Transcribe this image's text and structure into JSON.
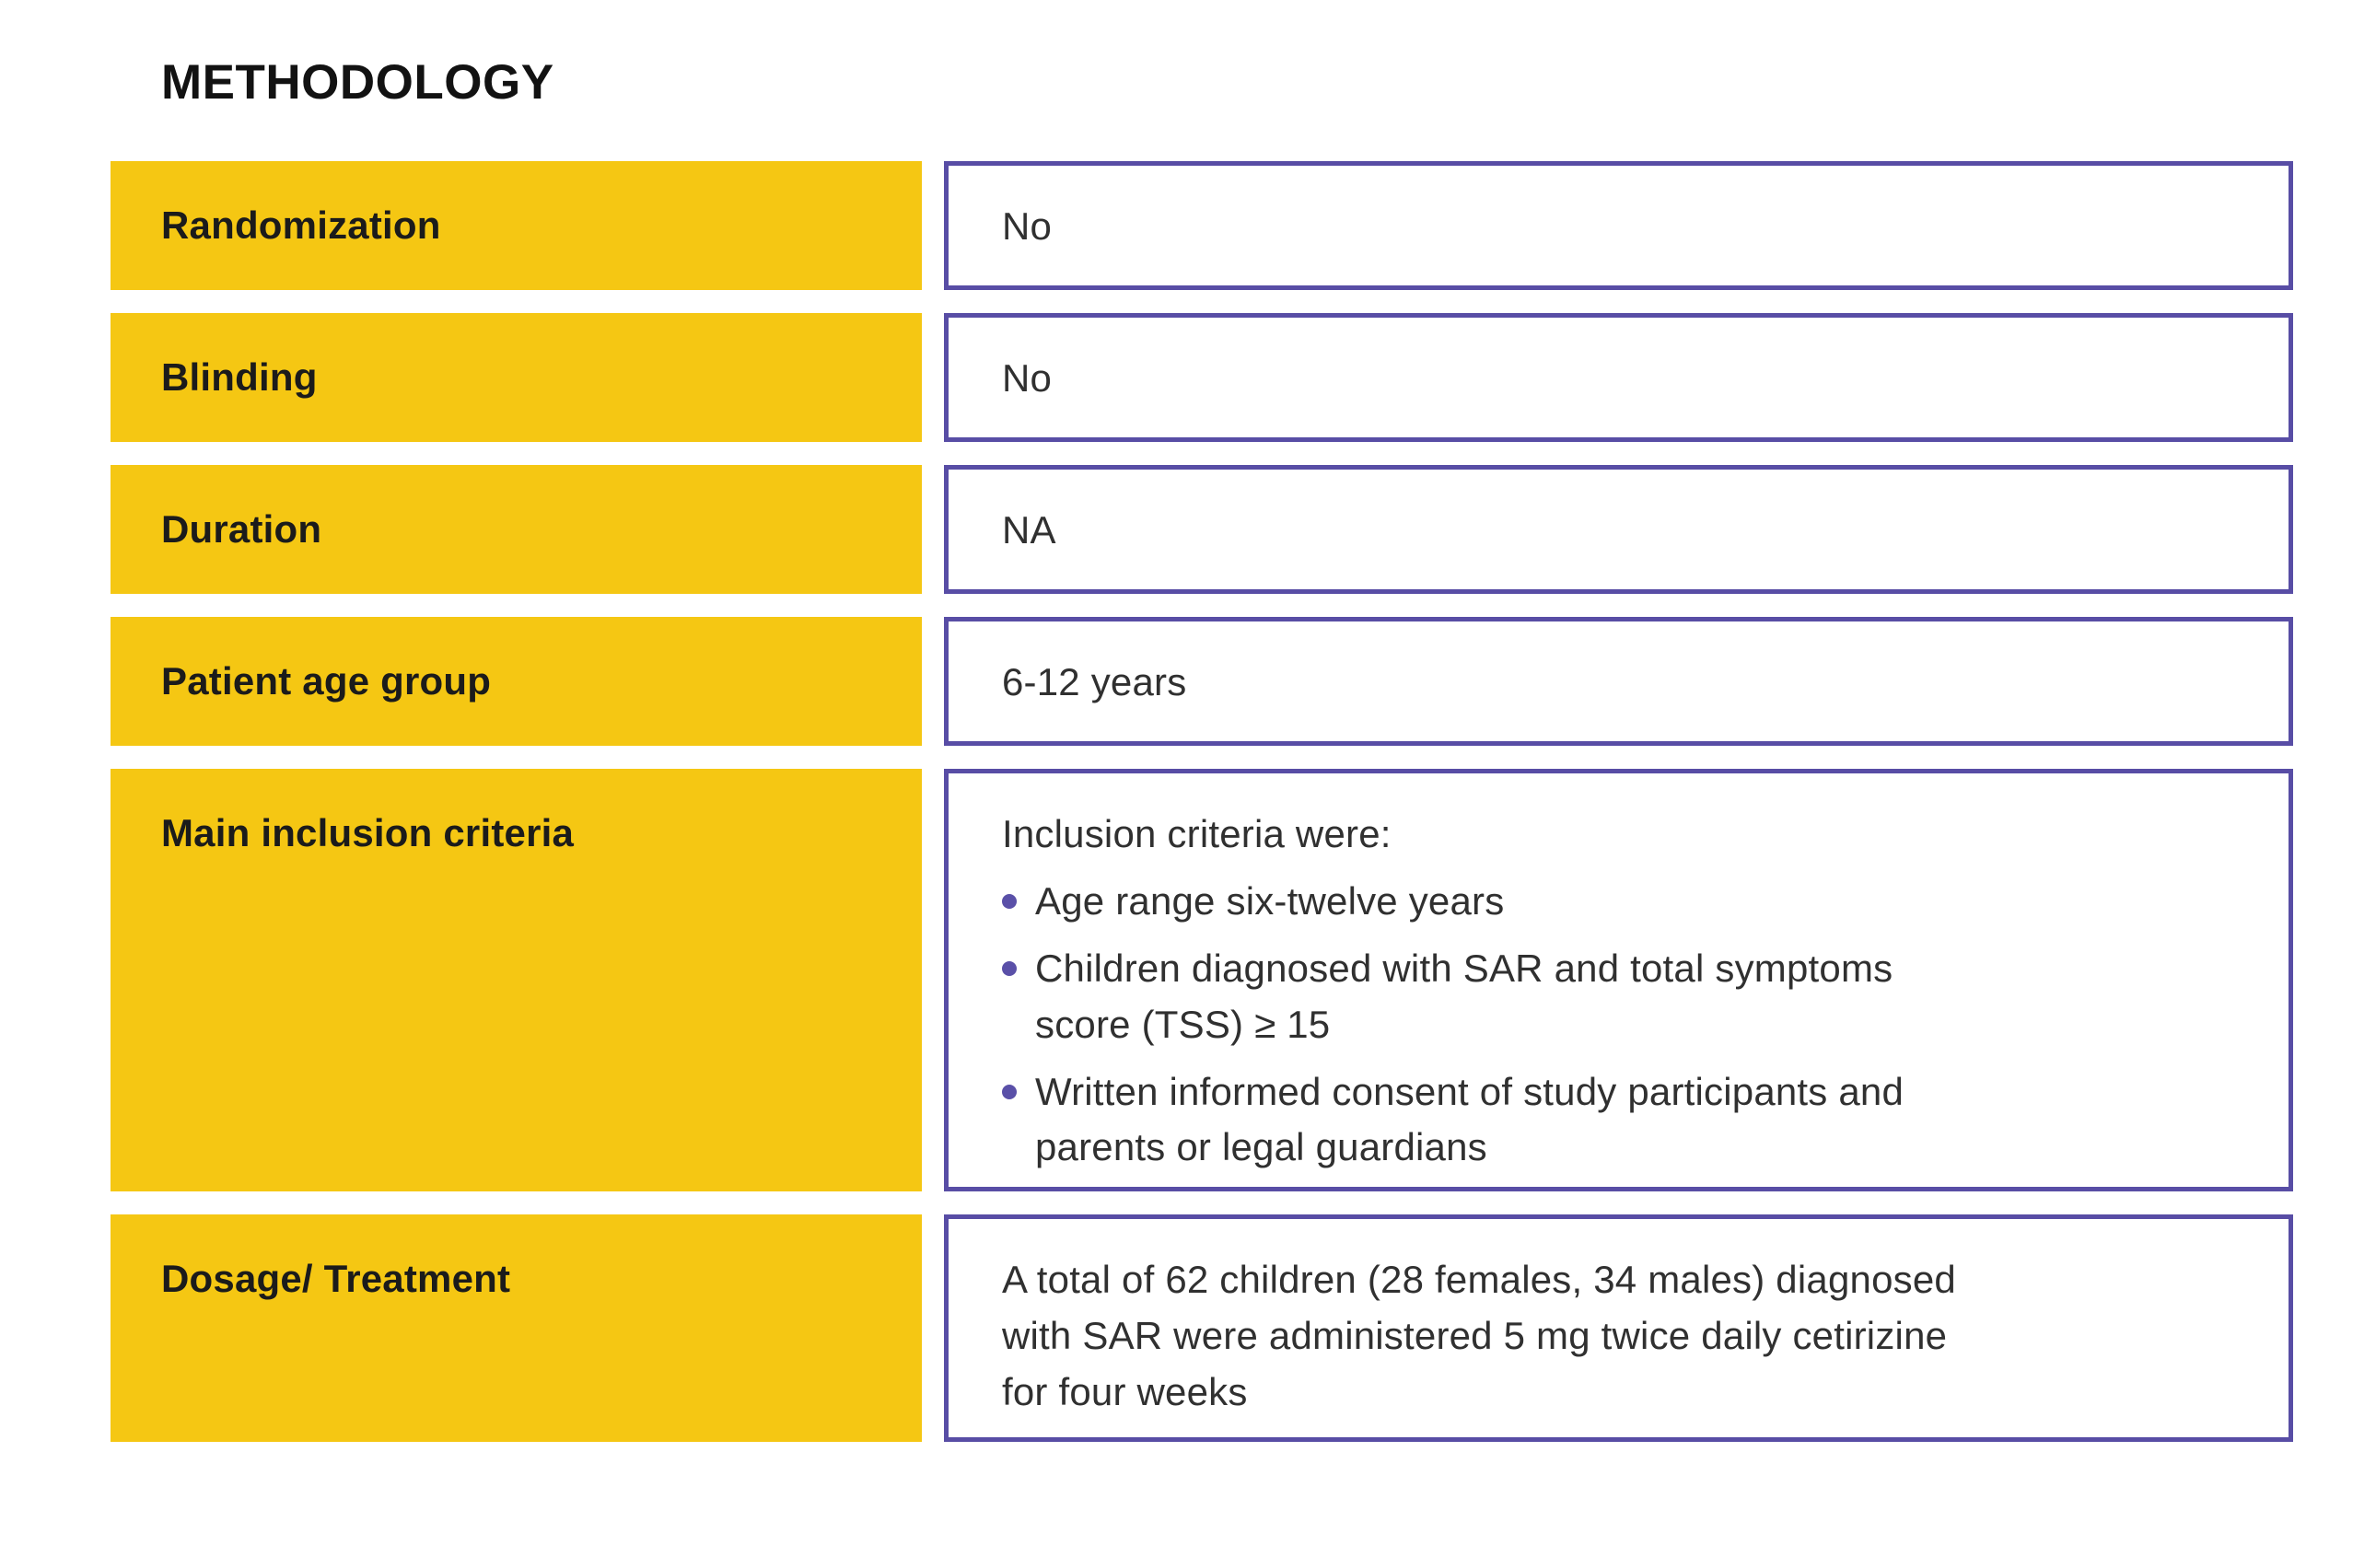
{
  "title": "METHODOLOGY",
  "colors": {
    "label_bg": "#F5C713",
    "value_border": "#584DA5",
    "bullet": "#5A50A8",
    "title_text": "#121212",
    "label_text": "#1B1B1B",
    "value_text": "#303030"
  },
  "table": {
    "rows": [
      {
        "label": "Randomization",
        "value_lines": [
          "No"
        ]
      },
      {
        "label": "Blinding",
        "value_lines": [
          "No"
        ]
      },
      {
        "label": "Duration",
        "value_lines": [
          "NA"
        ]
      },
      {
        "label": "Patient age group",
        "value_lines": [
          "6-12 years"
        ]
      },
      {
        "label": "Main inclusion criteria",
        "intro": "Inclusion criteria were:",
        "bullets": [
          [
            "Age range six-twelve years"
          ],
          [
            "Children diagnosed with SAR and total symptoms",
            "score (TSS) ≥ 15"
          ],
          [
            "Written informed consent of study participants and",
            "parents or legal guardians"
          ]
        ]
      },
      {
        "label": "Dosage/ Treatment",
        "value_lines": [
          "A total of 62 children (28 females, 34 males) diagnosed",
          "with SAR were administered 5 mg twice daily cetirizine",
          "for four weeks"
        ]
      }
    ]
  }
}
